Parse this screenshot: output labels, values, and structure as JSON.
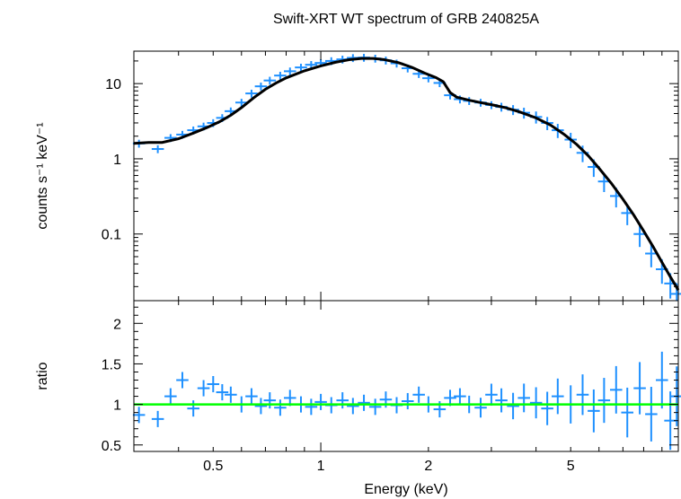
{
  "chart_data": [
    {
      "type": "scatter",
      "title": "Swift-XRT WT spectrum of GRB 240825A",
      "ylabel": "counts s⁻¹ keV⁻¹",
      "xlabel": "",
      "xscale": "log",
      "yscale": "log",
      "xlim": [
        0.3,
        10
      ],
      "ylim": [
        0.013,
        27
      ],
      "grid": false,
      "yticks": [
        0.1,
        1,
        10
      ],
      "ytick_labels": [
        "0.1",
        "1",
        "10"
      ],
      "series": [
        {
          "role": "data",
          "color": "#1e90ff",
          "x": [
            0.31,
            0.35,
            0.38,
            0.41,
            0.44,
            0.47,
            0.5,
            0.53,
            0.56,
            0.6,
            0.64,
            0.68,
            0.72,
            0.77,
            0.82,
            0.88,
            0.94,
            1.0,
            1.07,
            1.15,
            1.23,
            1.32,
            1.42,
            1.52,
            1.63,
            1.75,
            1.88,
            2.0,
            2.15,
            2.3,
            2.45,
            2.6,
            2.8,
            3.0,
            3.2,
            3.45,
            3.7,
            4.0,
            4.3,
            4.6,
            5.0,
            5.4,
            5.8,
            6.2,
            6.7,
            7.2,
            7.8,
            8.4,
            9.0,
            9.5,
            9.9
          ],
          "y": [
            1.6,
            1.35,
            1.9,
            2.1,
            2.4,
            2.7,
            3.0,
            3.5,
            4.3,
            5.6,
            7.4,
            9.2,
            11.0,
            12.8,
            14.6,
            16.4,
            17.8,
            18.8,
            20.0,
            21.0,
            22.0,
            22.2,
            21.6,
            20.4,
            18.6,
            16.0,
            13.5,
            11.8,
            10.2,
            7.0,
            6.2,
            5.9,
            5.6,
            5.2,
            4.9,
            4.5,
            4.1,
            3.6,
            3.0,
            2.4,
            1.8,
            1.2,
            0.78,
            0.5,
            0.32,
            0.19,
            0.1,
            0.055,
            0.034,
            0.022,
            0.016
          ]
        },
        {
          "role": "model",
          "color": "#000000",
          "x": [
            0.3,
            0.33,
            0.36,
            0.4,
            0.44,
            0.48,
            0.52,
            0.56,
            0.6,
            0.65,
            0.7,
            0.75,
            0.8,
            0.9,
            1.0,
            1.1,
            1.2,
            1.3,
            1.4,
            1.5,
            1.65,
            1.8,
            1.95,
            2.1,
            2.2,
            2.3,
            2.4,
            2.6,
            2.8,
            3.0,
            3.3,
            3.6,
            4.0,
            4.4,
            4.8,
            5.2,
            5.6,
            6.0,
            6.5,
            7.0,
            7.5,
            8.0,
            8.5,
            9.0,
            9.5,
            10.0
          ],
          "y": [
            1.6,
            1.65,
            1.65,
            1.85,
            2.2,
            2.6,
            3.1,
            3.8,
            4.8,
            6.5,
            8.4,
            10.2,
            11.9,
            14.8,
            17.2,
            19.2,
            20.8,
            21.6,
            21.6,
            20.9,
            19.0,
            16.4,
            13.8,
            12.0,
            10.6,
            7.6,
            6.6,
            6.0,
            5.6,
            5.25,
            4.75,
            4.2,
            3.5,
            2.8,
            2.1,
            1.55,
            1.1,
            0.75,
            0.47,
            0.29,
            0.18,
            0.11,
            0.068,
            0.042,
            0.027,
            0.018
          ]
        }
      ]
    },
    {
      "type": "scatter",
      "title": "",
      "xlabel": "Energy (keV)",
      "ylabel": "ratio",
      "xscale": "log",
      "xlim": [
        0.3,
        10
      ],
      "ylim": [
        0.42,
        2.28
      ],
      "grid": false,
      "xticks": [
        0.5,
        1,
        2,
        5
      ],
      "xtick_labels": [
        "0.5",
        "1",
        "2",
        "5"
      ],
      "yticks": [
        0.5,
        1,
        1.5,
        2
      ],
      "ytick_labels": [
        "0.5",
        "1",
        "1.5",
        "2"
      ],
      "reference_line": {
        "y": 1,
        "color": "#00ff00"
      },
      "series": [
        {
          "role": "data",
          "color": "#1e90ff",
          "x": [
            0.31,
            0.35,
            0.38,
            0.41,
            0.44,
            0.47,
            0.5,
            0.53,
            0.56,
            0.6,
            0.64,
            0.68,
            0.72,
            0.77,
            0.82,
            0.88,
            0.94,
            1.0,
            1.07,
            1.15,
            1.23,
            1.32,
            1.42,
            1.52,
            1.63,
            1.75,
            1.88,
            2.0,
            2.15,
            2.3,
            2.45,
            2.6,
            2.8,
            3.0,
            3.2,
            3.45,
            3.7,
            4.0,
            4.3,
            4.6,
            5.0,
            5.4,
            5.8,
            6.2,
            6.7,
            7.2,
            7.8,
            8.4,
            9.0,
            9.5,
            9.9
          ],
          "y": [
            0.87,
            0.82,
            1.1,
            1.3,
            0.95,
            1.2,
            1.25,
            1.15,
            1.12,
            1.0,
            1.1,
            0.98,
            1.05,
            0.96,
            1.08,
            1.0,
            0.97,
            1.03,
            0.99,
            1.05,
            0.98,
            1.02,
            0.97,
            1.06,
            0.99,
            1.04,
            1.12,
            1.0,
            0.94,
            1.08,
            1.1,
            1.0,
            0.96,
            1.12,
            1.05,
            0.98,
            1.08,
            1.02,
            0.95,
            1.1,
            1.0,
            1.12,
            0.92,
            1.05,
            1.18,
            0.9,
            1.2,
            0.88,
            1.3,
            0.8,
            1.1
          ]
        }
      ]
    }
  ]
}
